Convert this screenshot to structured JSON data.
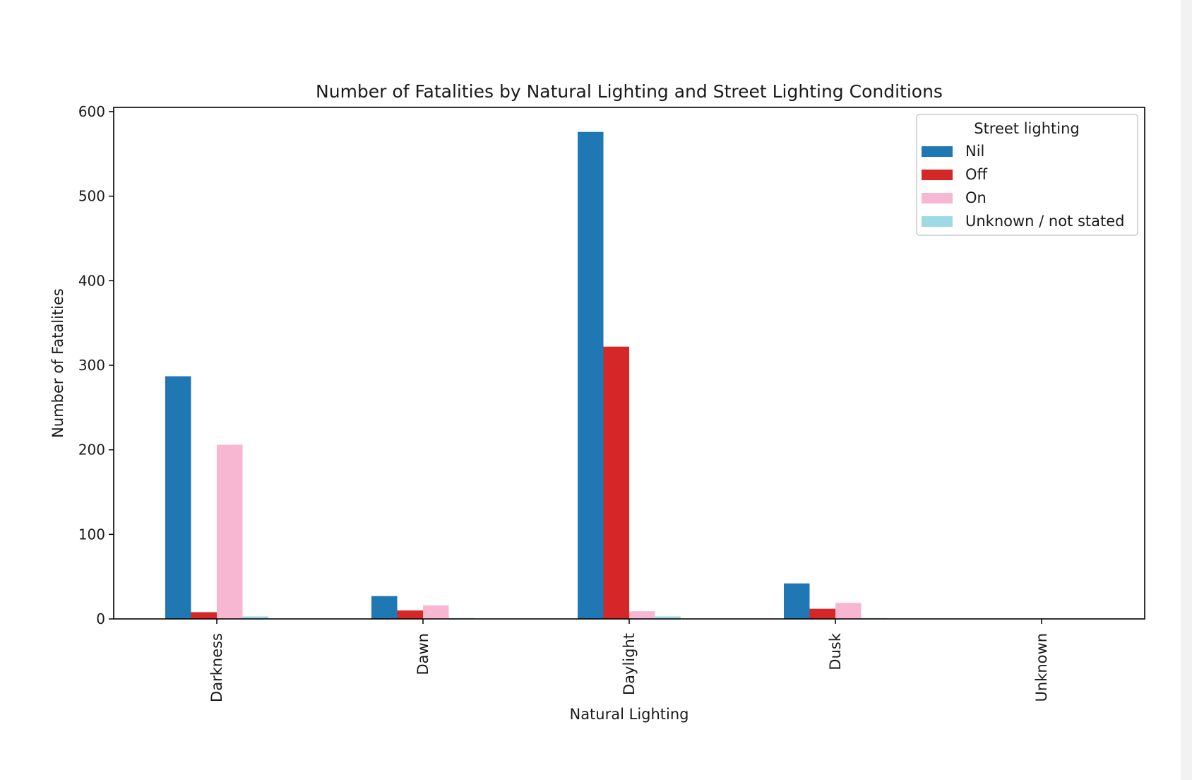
{
  "chart_data": {
    "type": "bar",
    "title": "Number of Fatalities by Natural Lighting and Street Lighting Conditions",
    "xlabel": "Natural Lighting",
    "ylabel": "Number of Fatalities",
    "categories": [
      "Darkness",
      "Dawn",
      "Daylight",
      "Dusk",
      "Unknown"
    ],
    "ylim": [
      0,
      605
    ],
    "yticks": [
      0,
      100,
      200,
      300,
      400,
      500,
      600
    ],
    "grid": false,
    "legend": {
      "title": "Street lighting",
      "position": "top-right"
    },
    "series": [
      {
        "name": "Nil",
        "color": "#1f77b4",
        "values": [
          287,
          27,
          576,
          42,
          0
        ]
      },
      {
        "name": "Off",
        "color": "#d62728",
        "values": [
          8,
          10,
          322,
          12,
          0
        ]
      },
      {
        "name": "On",
        "color": "#f7b6d2",
        "values": [
          206,
          16,
          9,
          19,
          0
        ]
      },
      {
        "name": "Unknown / not stated",
        "color": "#9edae5",
        "values": [
          3,
          1,
          3,
          1,
          0
        ]
      }
    ]
  }
}
